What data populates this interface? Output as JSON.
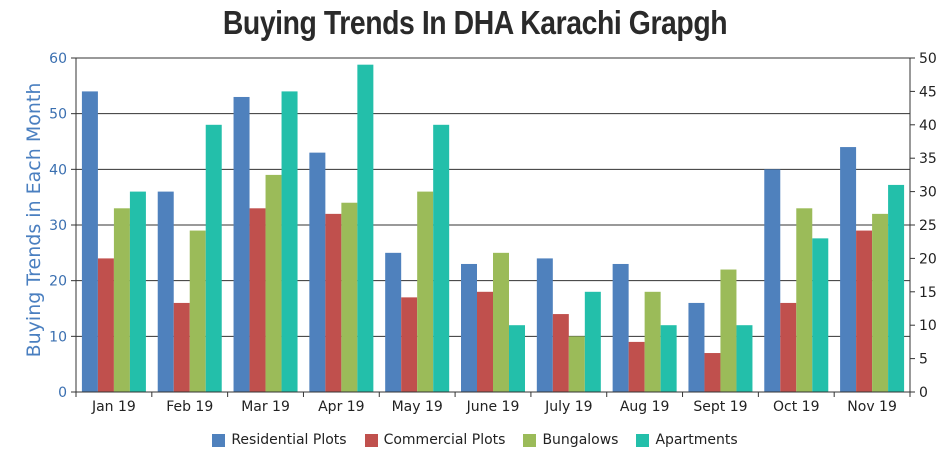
{
  "chart_data": {
    "type": "bar",
    "title": "Buying Trends In DHA Karachi Grapgh",
    "ylabel": "Buying Trends in Each Month",
    "xlabel": "",
    "categories": [
      "Jan 19",
      "Feb 19",
      "Mar 19",
      "Apr 19",
      "May 19",
      "June 19",
      "July 19",
      "Aug 19",
      "Sept 19",
      "Oct 19",
      "Nov 19"
    ],
    "ylim": [
      0,
      60
    ],
    "yticks": [
      0,
      10,
      20,
      30,
      40,
      50,
      60
    ],
    "y2lim": [
      0,
      50
    ],
    "y2ticks": [
      0,
      5,
      10,
      15,
      20,
      25,
      30,
      35,
      40,
      45,
      50
    ],
    "grid": true,
    "legend_position": "bottom",
    "series": [
      {
        "name": "Residential Plots",
        "color": "#4f81bd",
        "axis": "left",
        "values": [
          54,
          36,
          53,
          43,
          25,
          23,
          24,
          23,
          16,
          40,
          44
        ]
      },
      {
        "name": "Commercial Plots",
        "color": "#c0504d",
        "axis": "left",
        "values": [
          24,
          16,
          33,
          32,
          17,
          18,
          14,
          9,
          7,
          16,
          29
        ]
      },
      {
        "name": "Bungalows",
        "color": "#9bbb59",
        "axis": "left",
        "values": [
          33,
          29,
          39,
          34,
          36,
          25,
          10,
          18,
          22,
          33,
          32
        ]
      },
      {
        "name": "Apartments",
        "color": "#23bfaa",
        "axis": "right",
        "values": [
          30,
          40,
          45,
          49,
          40,
          10,
          15,
          10,
          10,
          23,
          31
        ]
      }
    ]
  }
}
